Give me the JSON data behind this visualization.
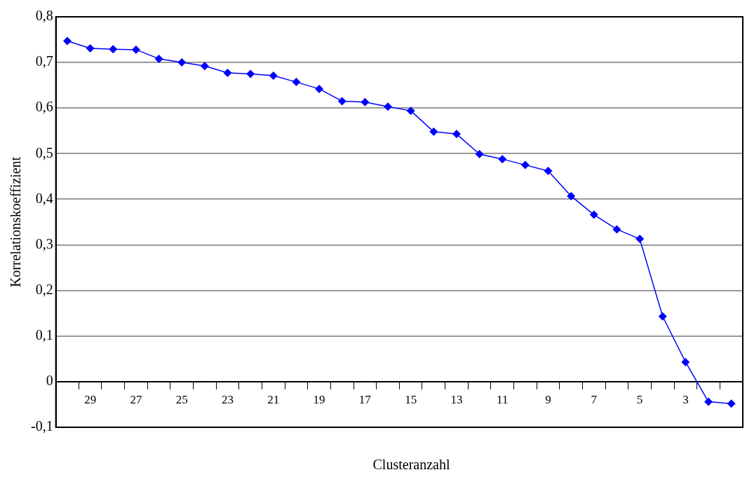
{
  "chart_data": {
    "type": "line",
    "xlabel": "Clusteranzahl",
    "ylabel": "Korrelationskoeffizient",
    "categories": [
      null,
      "29",
      null,
      "27",
      null,
      "25",
      null,
      "23",
      null,
      "21",
      null,
      "19",
      null,
      "17",
      null,
      "15",
      null,
      "13",
      null,
      "11",
      null,
      "9",
      null,
      "7",
      null,
      "5",
      null,
      "3",
      null,
      null
    ],
    "series": [
      {
        "color": "#0000ff",
        "values": [
          0.747,
          0.731,
          0.729,
          0.728,
          0.708,
          0.7,
          0.692,
          0.677,
          0.675,
          0.671,
          0.657,
          0.642,
          0.615,
          0.613,
          0.603,
          0.594,
          0.548,
          0.543,
          0.499,
          0.488,
          0.475,
          0.462,
          0.407,
          0.366,
          0.334,
          0.313,
          0.143,
          0.043,
          -0.044,
          -0.048
        ]
      }
    ],
    "ylim": [
      -0.1,
      0.8
    ],
    "yticks": [
      {
        "value": -0.1,
        "label": "-0,1"
      },
      {
        "value": 0,
        "label": "0"
      },
      {
        "value": 0.1,
        "label": "0,1"
      },
      {
        "value": 0.2,
        "label": "0,2"
      },
      {
        "value": 0.3,
        "label": "0,3"
      },
      {
        "value": 0.4,
        "label": "0,4"
      },
      {
        "value": 0.5,
        "label": "0,5"
      },
      {
        "value": 0.6,
        "label": "0,6"
      },
      {
        "value": 0.7,
        "label": "0,7"
      },
      {
        "value": 0.8,
        "label": "0,8"
      }
    ],
    "grid": "y",
    "legend": false,
    "marker": "diamond",
    "line_style": "solid"
  }
}
